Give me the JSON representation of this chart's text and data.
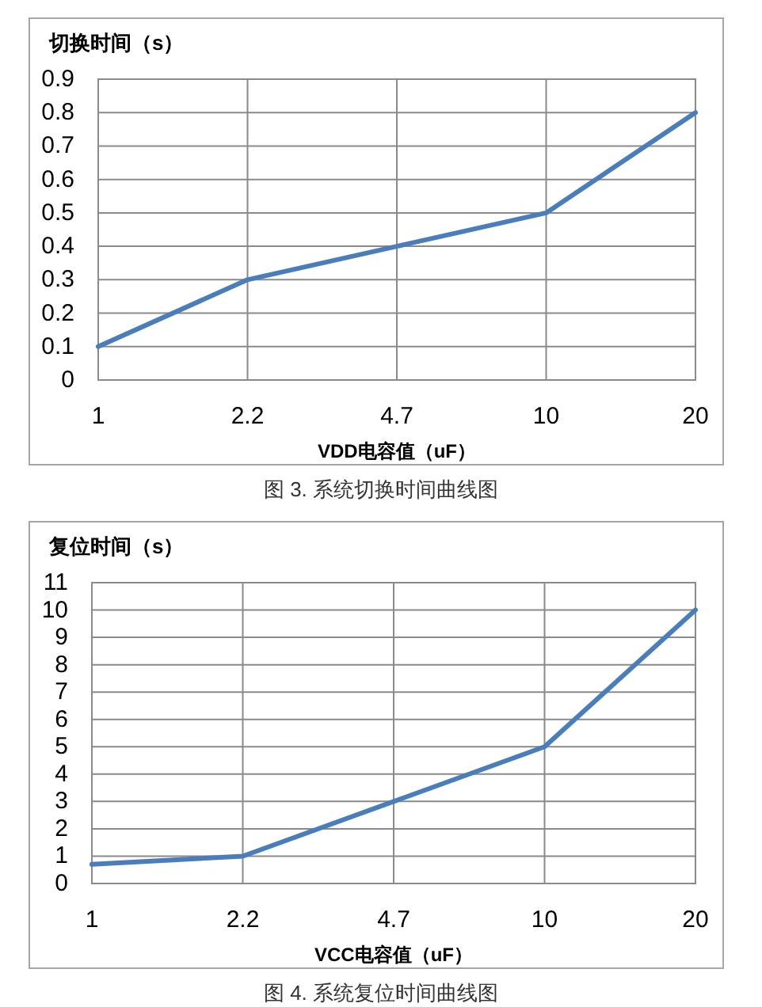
{
  "chart_data": [
    {
      "type": "line",
      "ylabel": "切换时间（s）",
      "xlabel": "VDD电容值（uF）",
      "categories": [
        "1",
        "2.2",
        "4.7",
        "10",
        "20"
      ],
      "values": [
        0.1,
        0.3,
        0.4,
        0.5,
        0.8
      ],
      "color": "#4a7ebb",
      "ylim": [
        0,
        0.9
      ],
      "yticks": [
        0,
        0.1,
        0.2,
        0.3,
        0.4,
        0.5,
        0.6,
        0.7,
        0.8,
        0.9
      ],
      "grid": true,
      "annotations": [
        "图 3. 系统切换时间曲线图"
      ]
    },
    {
      "type": "line",
      "ylabel": "复位时间（s）",
      "xlabel": "VCC电容值（uF）",
      "categories": [
        "1",
        "2.2",
        "4.7",
        "10",
        "20"
      ],
      "values": [
        0.7,
        1,
        3,
        5,
        10
      ],
      "color": "#4a7ebb",
      "ylim": [
        0,
        11
      ],
      "yticks": [
        0,
        1,
        2,
        3,
        4,
        5,
        6,
        7,
        8,
        9,
        10,
        11
      ],
      "grid": true,
      "annotations": [
        "图 4. 系统复位时间曲线图"
      ]
    }
  ]
}
